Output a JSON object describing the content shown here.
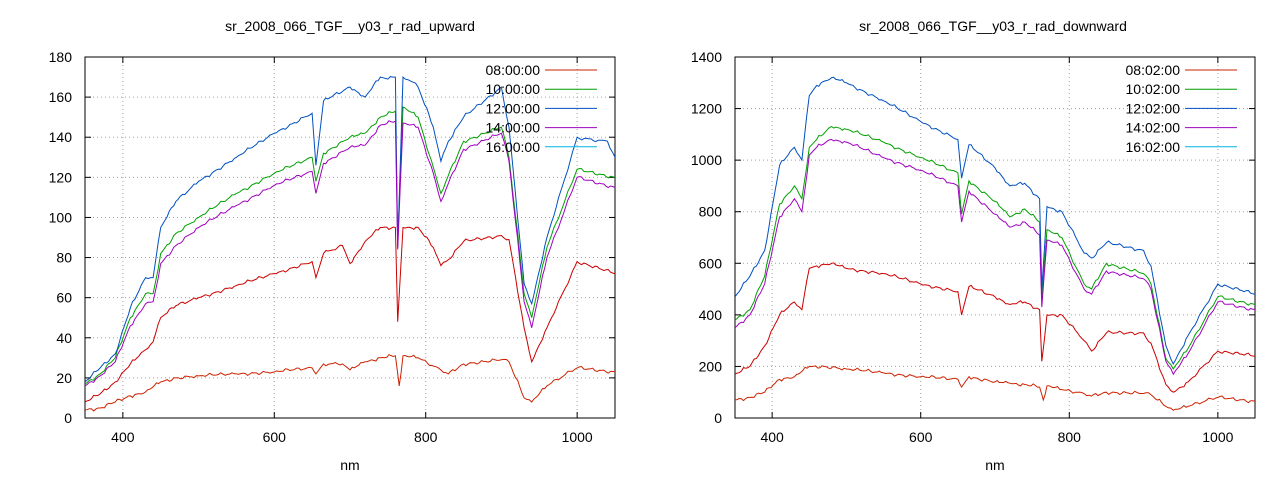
{
  "chart_data": [
    {
      "type": "line",
      "title": "sr_2008_066_TGF__y03_r_rad_upward",
      "xlabel": "nm",
      "ylabel": "",
      "xlim": [
        350,
        1050
      ],
      "ylim": [
        0,
        180
      ],
      "xticks": [
        400,
        600,
        800,
        1000
      ],
      "yticks": [
        0,
        20,
        40,
        60,
        80,
        100,
        120,
        140,
        160,
        180
      ],
      "grid": true,
      "legend_position": "top-right",
      "series": [
        {
          "name": "08:00:00",
          "color": "#cc2200",
          "x": [
            350,
            370,
            390,
            410,
            430,
            450,
            470,
            500,
            550,
            600,
            650,
            655,
            665,
            690,
            700,
            720,
            740,
            760,
            765,
            770,
            790,
            820,
            830,
            850,
            900,
            910,
            930,
            940,
            960,
            1000,
            1050
          ],
          "y": [
            4,
            5,
            8,
            11,
            13,
            18,
            20,
            21,
            22,
            23,
            25,
            22,
            27,
            27,
            24,
            28,
            30,
            31,
            16,
            31,
            30,
            24,
            22,
            27,
            29,
            28,
            10,
            8,
            16,
            25,
            23
          ]
        },
        {
          "name": "",
          "color": "#cc0000",
          "x": [
            350,
            370,
            390,
            410,
            430,
            440,
            450,
            470,
            500,
            550,
            600,
            650,
            655,
            665,
            690,
            700,
            720,
            740,
            760,
            763,
            770,
            790,
            810,
            820,
            830,
            850,
            900,
            910,
            930,
            940,
            960,
            1000,
            1050
          ],
          "y": [
            8,
            12,
            18,
            27,
            34,
            38,
            50,
            56,
            60,
            66,
            72,
            78,
            70,
            82,
            86,
            77,
            88,
            95,
            95,
            48,
            95,
            95,
            85,
            76,
            79,
            88,
            91,
            89,
            45,
            28,
            45,
            78,
            72
          ]
        },
        {
          "name": "10:00:00",
          "color": "#00a000",
          "x": [
            350,
            370,
            390,
            410,
            430,
            440,
            450,
            470,
            500,
            550,
            600,
            650,
            655,
            665,
            700,
            720,
            740,
            760,
            763,
            770,
            790,
            810,
            820,
            830,
            850,
            900,
            910,
            930,
            940,
            960,
            1000,
            1050
          ],
          "y": [
            17,
            22,
            30,
            50,
            62,
            62,
            82,
            92,
            100,
            112,
            122,
            130,
            118,
            132,
            140,
            142,
            150,
            153,
            87,
            155,
            150,
            125,
            112,
            121,
            138,
            145,
            130,
            62,
            50,
            85,
            124,
            120
          ]
        },
        {
          "name": "12:00:00",
          "color": "#0050c0",
          "x": [
            350,
            370,
            390,
            410,
            430,
            440,
            450,
            470,
            500,
            550,
            600,
            650,
            655,
            665,
            700,
            720,
            740,
            750,
            760,
            763,
            770,
            780,
            790,
            810,
            820,
            830,
            850,
            900,
            910,
            930,
            940,
            960,
            1000,
            1040,
            1050
          ],
          "y": [
            18,
            25,
            32,
            55,
            70,
            70,
            95,
            108,
            118,
            130,
            142,
            152,
            126,
            158,
            165,
            160,
            170,
            169,
            170,
            85,
            170,
            168,
            165,
            145,
            128,
            138,
            150,
            165,
            145,
            67,
            57,
            90,
            140,
            138,
            130
          ]
        },
        {
          "name": "14:00:00",
          "color": "#a000c0",
          "x": [
            350,
            370,
            390,
            410,
            430,
            440,
            450,
            470,
            500,
            550,
            600,
            650,
            655,
            665,
            700,
            720,
            740,
            760,
            763,
            770,
            790,
            810,
            820,
            830,
            850,
            900,
            910,
            930,
            940,
            960,
            1000,
            1050
          ],
          "y": [
            16,
            21,
            28,
            46,
            57,
            58,
            77,
            86,
            95,
            106,
            116,
            123,
            112,
            127,
            135,
            136,
            146,
            148,
            84,
            147,
            145,
            122,
            108,
            117,
            134,
            142,
            128,
            58,
            45,
            80,
            120,
            115
          ]
        },
        {
          "name": "16:00:00",
          "color": "#00b4e0",
          "x": [],
          "y": []
        }
      ]
    },
    {
      "type": "line",
      "title": "sr_2008_066_TGF__y03_r_rad_downward",
      "xlabel": "nm",
      "ylabel": "",
      "xlim": [
        350,
        1050
      ],
      "ylim": [
        0,
        1400
      ],
      "xticks": [
        400,
        600,
        800,
        1000
      ],
      "yticks": [
        0,
        200,
        400,
        600,
        800,
        1000,
        1200,
        1400
      ],
      "grid": true,
      "legend_position": "top-right",
      "series": [
        {
          "name": "08:02:00",
          "color": "#cc2200",
          "x": [
            350,
            370,
            390,
            410,
            430,
            450,
            470,
            500,
            550,
            600,
            650,
            655,
            665,
            700,
            720,
            740,
            760,
            765,
            770,
            790,
            820,
            830,
            850,
            900,
            910,
            930,
            940,
            960,
            1000,
            1050
          ],
          "y": [
            70,
            80,
            100,
            150,
            160,
            200,
            200,
            190,
            175,
            160,
            150,
            120,
            160,
            140,
            135,
            130,
            120,
            70,
            125,
            110,
            95,
            85,
            100,
            95,
            90,
            45,
            30,
            45,
            80,
            65
          ]
        },
        {
          "name": "",
          "color": "#cc0000",
          "x": [
            350,
            370,
            390,
            410,
            430,
            440,
            450,
            460,
            480,
            500,
            550,
            600,
            650,
            655,
            665,
            700,
            720,
            740,
            760,
            763,
            770,
            790,
            820,
            830,
            850,
            900,
            910,
            930,
            940,
            960,
            1000,
            1050
          ],
          "y": [
            170,
            200,
            280,
            400,
            450,
            420,
            580,
            590,
            600,
            580,
            560,
            520,
            490,
            400,
            510,
            470,
            440,
            450,
            420,
            220,
            400,
            400,
            300,
            260,
            330,
            330,
            290,
            130,
            100,
            140,
            260,
            240
          ]
        },
        {
          "name": "10:02:00",
          "color": "#00a000",
          "x": [
            350,
            370,
            390,
            410,
            430,
            440,
            450,
            460,
            480,
            500,
            550,
            600,
            650,
            655,
            665,
            700,
            720,
            740,
            760,
            763,
            770,
            790,
            820,
            830,
            850,
            900,
            910,
            930,
            940,
            960,
            1000,
            1050
          ],
          "y": [
            380,
            420,
            550,
            830,
            900,
            850,
            1050,
            1080,
            1130,
            1120,
            1070,
            1010,
            950,
            790,
            920,
            840,
            780,
            810,
            760,
            460,
            730,
            700,
            520,
            500,
            600,
            560,
            520,
            230,
            190,
            270,
            470,
            440
          ]
        },
        {
          "name": "12:02:00",
          "color": "#0050c0",
          "x": [
            350,
            370,
            390,
            410,
            430,
            440,
            450,
            460,
            480,
            500,
            550,
            600,
            650,
            655,
            665,
            700,
            720,
            740,
            760,
            763,
            770,
            790,
            820,
            830,
            850,
            900,
            910,
            930,
            940,
            960,
            1000,
            1050
          ],
          "y": [
            470,
            550,
            650,
            980,
            1050,
            1000,
            1250,
            1290,
            1320,
            1300,
            1230,
            1150,
            1080,
            930,
            1060,
            970,
            900,
            910,
            850,
            500,
            820,
            800,
            640,
            620,
            680,
            650,
            590,
            280,
            210,
            320,
            520,
            480
          ]
        },
        {
          "name": "14:02:00",
          "color": "#a000c0",
          "x": [
            350,
            370,
            390,
            410,
            430,
            440,
            450,
            460,
            480,
            500,
            550,
            600,
            650,
            655,
            665,
            700,
            720,
            740,
            760,
            763,
            770,
            790,
            820,
            830,
            850,
            900,
            910,
            930,
            940,
            960,
            1000,
            1050
          ],
          "y": [
            350,
            400,
            520,
            780,
            850,
            800,
            1020,
            1050,
            1080,
            1070,
            1010,
            960,
            900,
            760,
            880,
            790,
            740,
            760,
            710,
            430,
            690,
            670,
            500,
            480,
            570,
            540,
            500,
            220,
            170,
            250,
            450,
            420
          ]
        },
        {
          "name": "16:02:00",
          "color": "#00b4e0",
          "x": [],
          "y": []
        }
      ]
    }
  ]
}
